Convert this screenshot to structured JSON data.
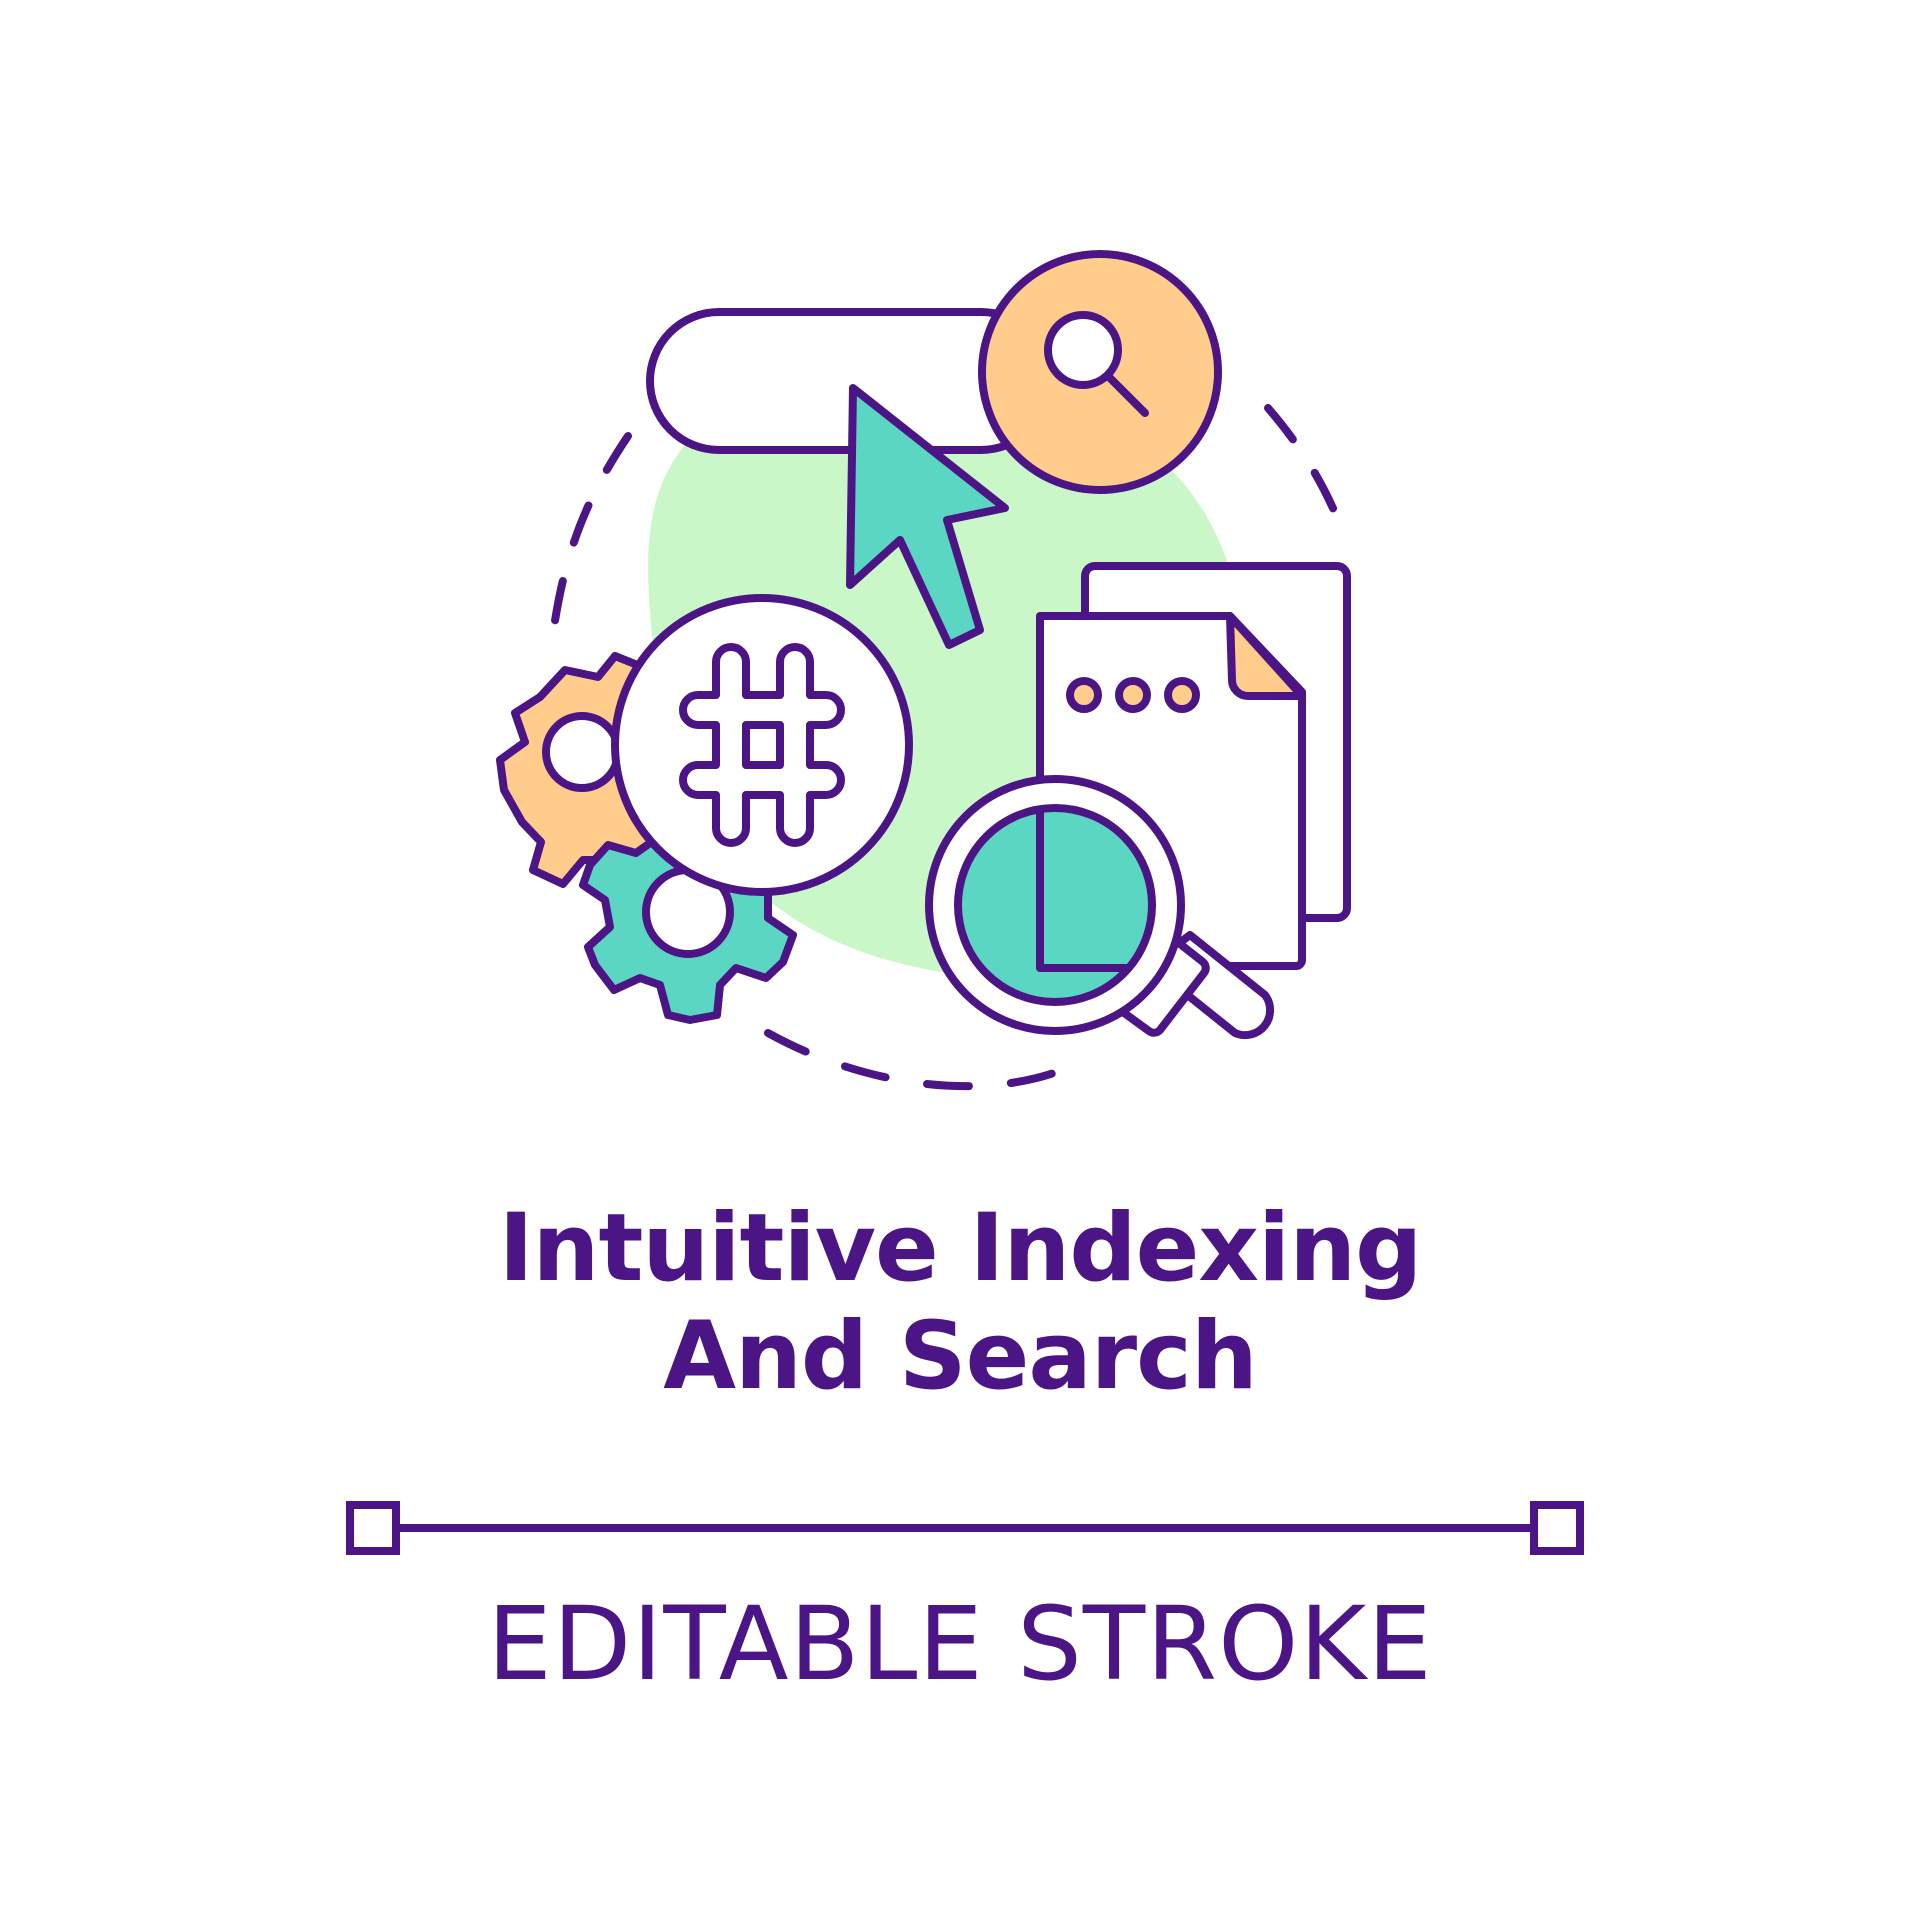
{
  "title_line1": "Intuitive Indexing",
  "title_line2": "And Search",
  "caption": "EDITABLE STROKE",
  "colors": {
    "outline": "#4b1585",
    "accent_orange": "#ffcc8b",
    "accent_teal": "#5bd6c2",
    "accent_green": "#c9f7c7",
    "background": "#ffffff"
  },
  "icons": [
    "search-bar-icon",
    "search-button-icon",
    "cursor-arrow-icon",
    "hashtag-icon",
    "gear-icon",
    "document-icon",
    "magnifying-glass-icon",
    "pie-chart-icon"
  ]
}
